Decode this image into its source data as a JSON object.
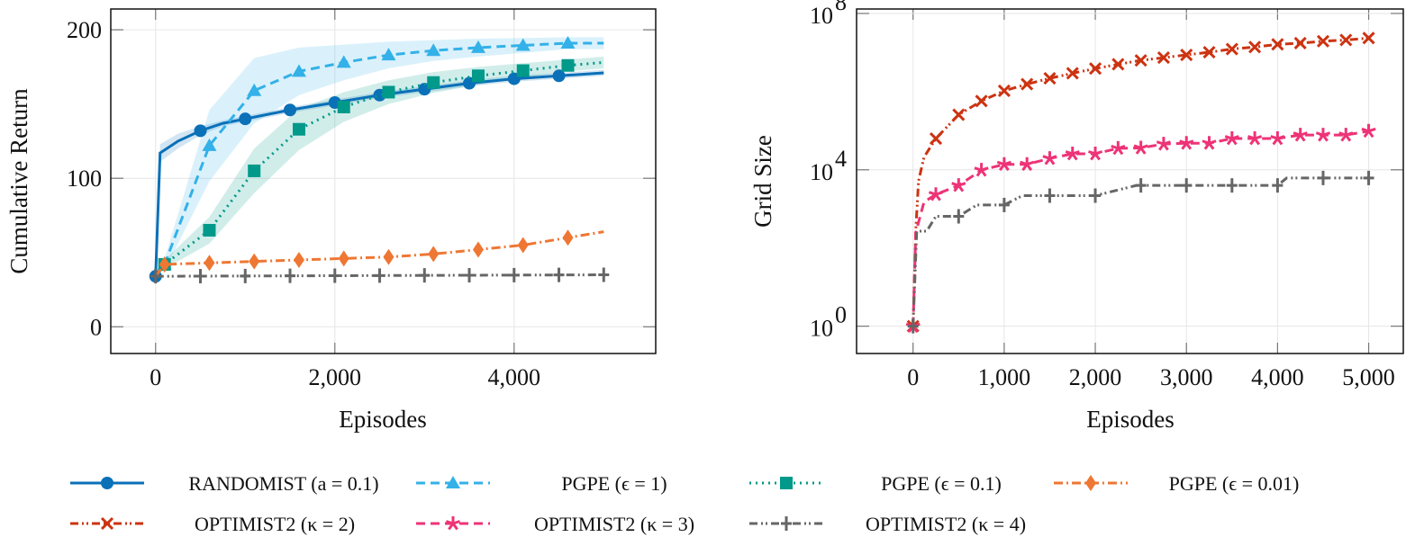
{
  "chart_data": [
    {
      "type": "line",
      "xlabel": "Episodes",
      "ylabel": "Cumulative Return",
      "xlim": [
        -500,
        5580
      ],
      "ylim": [
        -18,
        214
      ],
      "xticks": [
        0,
        2000,
        4000
      ],
      "xtick_labels": [
        "0",
        "2,000",
        "4,000"
      ],
      "yticks": [
        0,
        100,
        200
      ],
      "ytick_labels": [
        "0",
        "100",
        "200"
      ],
      "grid": true,
      "series": [
        {
          "name": "RANDOMIST (a = 0.1)",
          "color": "#0a70b8",
          "style": "solid",
          "marker": "circle",
          "x": [
            0,
            50,
            250,
            500,
            750,
            1000,
            1500,
            2000,
            2500,
            3000,
            3500,
            4000,
            4500,
            5000
          ],
          "y": [
            34,
            117,
            125,
            132,
            137,
            140,
            146,
            151,
            156,
            160,
            164,
            167,
            169,
            171
          ],
          "band": [
            0,
            6,
            5,
            3,
            2,
            2,
            2,
            2,
            2,
            2,
            2,
            2,
            2,
            2
          ],
          "marker_x": [
            0,
            500,
            1000,
            1500,
            2000,
            2500,
            3000,
            3500,
            4000,
            4500
          ]
        },
        {
          "name": "PGPE (ϵ = 1)",
          "color": "#33b1e8",
          "style": "dashed",
          "marker": "triangle",
          "x": [
            0,
            100,
            600,
            1100,
            1600,
            2100,
            2600,
            3100,
            3600,
            4100,
            4600,
            5000
          ],
          "y": [
            34,
            42,
            122,
            159,
            172,
            178,
            183,
            186,
            188,
            189.5,
            191,
            191
          ],
          "band": [
            0,
            4,
            24,
            22,
            16,
            12,
            9,
            7,
            6,
            5,
            4,
            4
          ],
          "marker_x": [
            100,
            600,
            1100,
            1600,
            2100,
            2600,
            3100,
            3600,
            4100,
            4600
          ]
        },
        {
          "name": "PGPE (ϵ = 0.1)",
          "color": "#00998a",
          "style": "dotted",
          "marker": "square",
          "x": [
            0,
            100,
            600,
            1100,
            1600,
            2100,
            2600,
            3100,
            3600,
            4100,
            4600,
            5000
          ],
          "y": [
            34,
            42,
            65,
            105,
            133,
            148,
            158,
            164.5,
            169,
            172.5,
            176,
            178
          ],
          "band": [
            0,
            3,
            9,
            15,
            14,
            10,
            8,
            7,
            6,
            5,
            4,
            4
          ],
          "marker_x": [
            100,
            600,
            1100,
            1600,
            2100,
            2600,
            3100,
            3600,
            4100,
            4600
          ]
        },
        {
          "name": "PGPE (ϵ = 0.01)",
          "color": "#ee7733",
          "style": "dashdot",
          "marker": "diamond",
          "x": [
            0,
            100,
            600,
            1100,
            1600,
            2100,
            2600,
            3100,
            3600,
            4100,
            4600,
            5000
          ],
          "y": [
            34,
            42,
            43,
            44,
            45,
            46,
            47,
            49,
            52,
            55,
            60,
            64
          ],
          "marker_x": [
            100,
            600,
            1100,
            1600,
            2100,
            2600,
            3100,
            3600,
            4100,
            4600
          ]
        },
        {
          "name": "OPTIMIST2 (κ = 4)",
          "color": "#666666",
          "style": "dashdotdot",
          "marker": "plus",
          "x": [
            0,
            5000
          ],
          "y": [
            34,
            35
          ],
          "marker_x": [
            0,
            500,
            1000,
            1500,
            2000,
            2500,
            3000,
            3500,
            4000,
            4500,
            5000
          ]
        }
      ]
    },
    {
      "type": "line",
      "xlabel": "Episodes",
      "ylabel": "Grid Size",
      "yscale": "log",
      "xlim": [
        -620,
        5380
      ],
      "ylim": [
        0.2,
        130000000
      ],
      "xticks": [
        0,
        1000,
        2000,
        3000,
        4000,
        5000
      ],
      "xtick_labels": [
        "0",
        "1,000",
        "2,000",
        "3,000",
        "4,000",
        "5,000"
      ],
      "yticks": [
        1,
        10000,
        100000000
      ],
      "ytick_labels": [
        {
          "base": "10",
          "exp": "0"
        },
        {
          "base": "10",
          "exp": "4"
        },
        {
          "base": "10",
          "exp": "8"
        }
      ],
      "grid": true,
      "series": [
        {
          "name": "OPTIMIST2 (κ = 2)",
          "color": "#cc3311",
          "style": "dashdotdot",
          "marker": "x",
          "x": [
            0,
            30,
            60,
            120,
            250,
            500,
            750,
            1000,
            1250,
            1500,
            1750,
            2000,
            2250,
            2500,
            2750,
            3000,
            3250,
            3500,
            3750,
            4000,
            4250,
            4500,
            4750,
            5000
          ],
          "y": [
            1,
            300,
            5200,
            21000,
            63000,
            257000,
            575000,
            1050000,
            1550000,
            2190000,
            2950000,
            3890000,
            5000000,
            6300000,
            7400000,
            8700000,
            10200000,
            12300000,
            13800000,
            16200000,
            17400000,
            19500000,
            20900000,
            23400000
          ],
          "marker_x": [
            0,
            250,
            500,
            750,
            1000,
            1250,
            1500,
            1750,
            2000,
            2250,
            2500,
            2750,
            3000,
            3250,
            3500,
            3750,
            4000,
            4250,
            4500,
            4750,
            5000
          ]
        },
        {
          "name": "OPTIMIST2 (κ = 3)",
          "color": "#ee3377",
          "style": "dashed",
          "marker": "star",
          "x": [
            0,
            30,
            120,
            250,
            500,
            750,
            1000,
            1250,
            1500,
            1750,
            2000,
            2250,
            2500,
            2750,
            3000,
            3250,
            3500,
            3750,
            4000,
            4250,
            4500,
            4750,
            5000
          ],
          "y": [
            1,
            250,
            1500,
            2340,
            3980,
            9800,
            13800,
            13800,
            19500,
            25700,
            25700,
            35500,
            36300,
            45700,
            47900,
            47900,
            63000,
            63000,
            63000,
            77600,
            77600,
            77600,
            97700
          ],
          "marker_x": [
            0,
            250,
            500,
            750,
            1000,
            1250,
            1500,
            1750,
            2000,
            2250,
            2500,
            2750,
            3000,
            3250,
            3500,
            3750,
            4000,
            4250,
            4500,
            4750,
            5000
          ]
        },
        {
          "name": "OPTIMIST2 (κ = 4)",
          "color": "#666666",
          "style": "dashdotdot",
          "marker": "plus",
          "x": [
            0,
            40,
            150,
            250,
            500,
            700,
            1000,
            1200,
            2000,
            2450,
            4000,
            4100,
            5000
          ],
          "y": [
            1,
            270,
            270,
            646,
            646,
            1260,
            1260,
            2190,
            2190,
            3980,
            3980,
            6170,
            6170
          ],
          "marker_x": [
            0,
            500,
            1000,
            1500,
            2000,
            2500,
            3000,
            3500,
            4000,
            4500,
            5000
          ]
        }
      ]
    }
  ],
  "legend": {
    "placement": "bottom",
    "items": [
      {
        "label": "RANDOMIST (a = 0.1)",
        "color": "#0a70b8",
        "style": "solid",
        "marker": "circle"
      },
      {
        "label": "PGPE (ϵ = 1)",
        "color": "#33b1e8",
        "style": "dashed",
        "marker": "triangle"
      },
      {
        "label": "PGPE (ϵ = 0.1)",
        "color": "#00998a",
        "style": "dotted",
        "marker": "square"
      },
      {
        "label": "PGPE (ϵ = 0.01)",
        "color": "#ee7733",
        "style": "dashdot",
        "marker": "diamond"
      },
      {
        "label": "OPTIMIST2 (κ = 2)",
        "color": "#cc3311",
        "style": "dashdotdot",
        "marker": "x"
      },
      {
        "label": "OPTIMIST2 (κ = 3)",
        "color": "#ee3377",
        "style": "dashed",
        "marker": "star"
      },
      {
        "label": "OPTIMIST2 (κ = 4)",
        "color": "#666666",
        "style": "dashdotdot",
        "marker": "plus"
      }
    ]
  }
}
